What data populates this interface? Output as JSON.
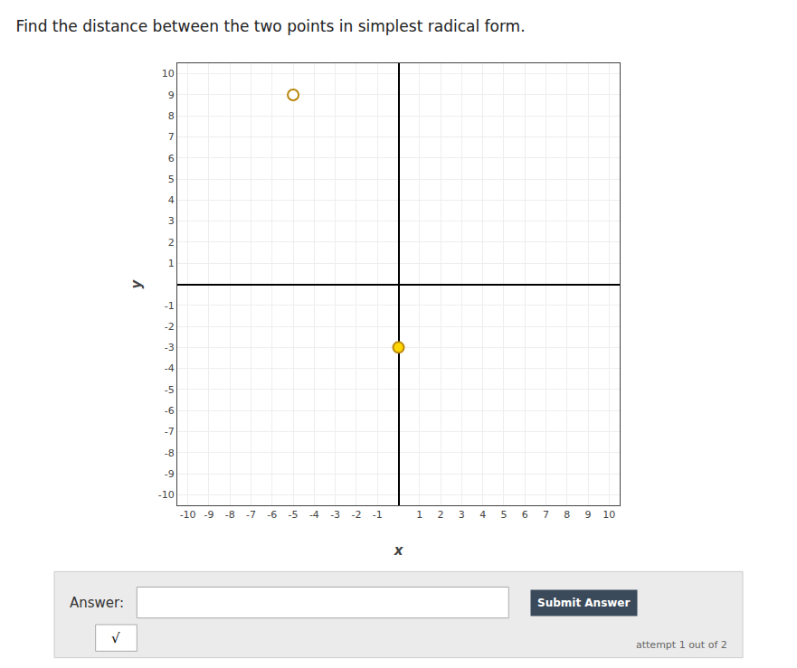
{
  "chart_data": {
    "type": "scatter",
    "title": "Find the distance between the two points in simplest radical form.",
    "xlabel": "x",
    "ylabel": "y",
    "x": [
      -5,
      0
    ],
    "values": [
      9,
      -3
    ],
    "colors": [
      "#FFFFFF",
      "#FFD700"
    ],
    "color": "#B8860B",
    "marker": "circle",
    "xlim": [
      -10.5,
      10.5
    ],
    "ylim": [
      -10.5,
      10.5
    ],
    "xticks": [
      -10,
      -9,
      -8,
      -7,
      -6,
      -5,
      -4,
      -3,
      -2,
      -1,
      1,
      2,
      3,
      4,
      5,
      6,
      7,
      8,
      9,
      10
    ],
    "yticks": [
      -10,
      -9,
      -8,
      -7,
      -6,
      -5,
      -4,
      -3,
      -2,
      -1,
      1,
      2,
      3,
      4,
      5,
      6,
      7,
      8,
      9,
      10
    ],
    "grid": true,
    "annotations": [
      "Answer:",
      "Submit Answer",
      "√",
      "attempt 1 out of 2"
    ]
  }
}
